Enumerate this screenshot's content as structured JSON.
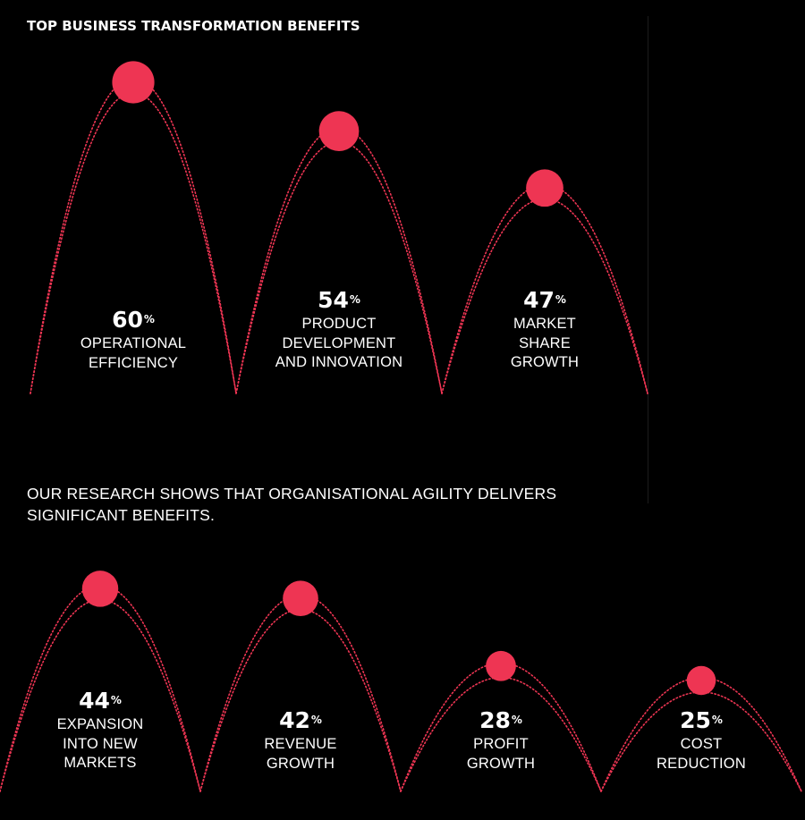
{
  "title": "TOP BUSINESS TRANSFORMATION  BENEFITS",
  "subtitle": "OUR RESEARCH SHOWS THAT ORGANISATIONAL AGILITY DELIVERS SIGNIFICANT BENEFITS.",
  "accent_color": "#ee3553",
  "chart_data": [
    {
      "type": "other",
      "title": "TOP BUSINESS TRANSFORMATION  BENEFITS",
      "items": [
        {
          "value": 60,
          "unit": "%",
          "label": [
            "OPERATIONAL",
            "EFFICIENCY"
          ]
        },
        {
          "value": 54,
          "unit": "%",
          "label": [
            "PRODUCT",
            "DEVELOPMENT",
            "AND INNOVATION"
          ]
        },
        {
          "value": 47,
          "unit": "%",
          "label": [
            "MARKET",
            "SHARE",
            "GROWTH"
          ]
        }
      ]
    },
    {
      "type": "other",
      "title": "",
      "items": [
        {
          "value": 44,
          "unit": "%",
          "label": [
            "EXPANSION",
            "INTO NEW",
            "MARKETS"
          ]
        },
        {
          "value": 42,
          "unit": "%",
          "label": [
            "REVENUE",
            "GROWTH"
          ]
        },
        {
          "value": 28,
          "unit": "%",
          "label": [
            "PROFIT",
            "GROWTH"
          ]
        },
        {
          "value": 25,
          "unit": "%",
          "label": [
            "COST",
            "REDUCTION"
          ]
        }
      ]
    }
  ]
}
